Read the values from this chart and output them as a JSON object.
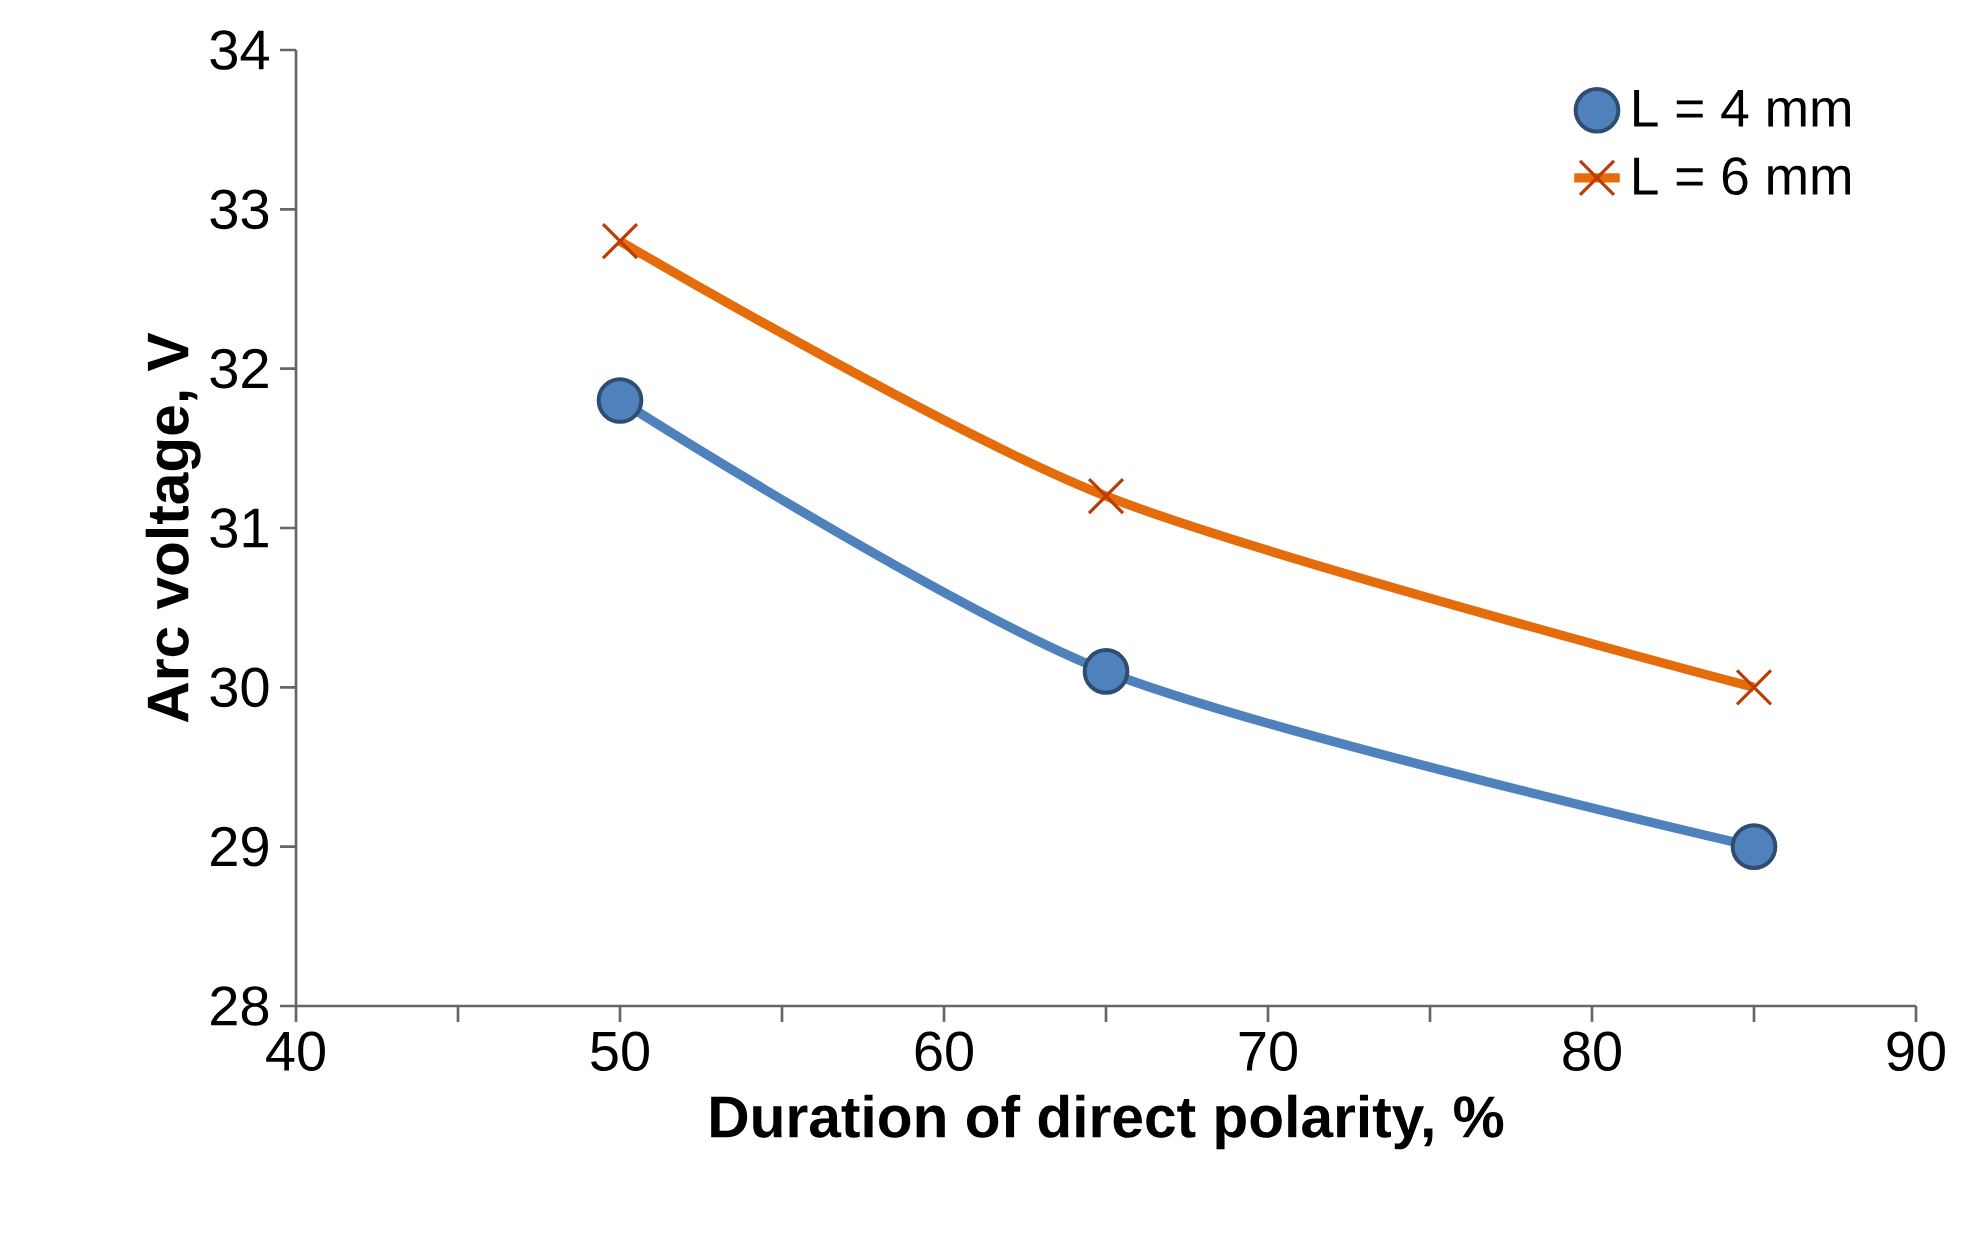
{
  "chart_data": {
    "type": "line",
    "xlabel": "Duration of direct polarity, %",
    "ylabel": "Arc voltage, V",
    "x": [
      50,
      65,
      85
    ],
    "series": [
      {
        "name": "L = 4 mm",
        "color": "#4f81bd",
        "marker": "circle",
        "values": [
          31.8,
          30.1,
          29.0
        ]
      },
      {
        "name": "L = 6 mm",
        "color": "#e46c0a",
        "marker": "cross",
        "values": [
          32.8,
          31.2,
          30.0
        ]
      }
    ],
    "xlim": [
      40,
      90
    ],
    "xticks": [
      40,
      50,
      60,
      70,
      80,
      90
    ],
    "ylim": [
      28,
      34
    ],
    "yticks": [
      28,
      29,
      30,
      31,
      32,
      33,
      34
    ],
    "grid": false,
    "legend": "top right",
    "line_style": "solid"
  }
}
